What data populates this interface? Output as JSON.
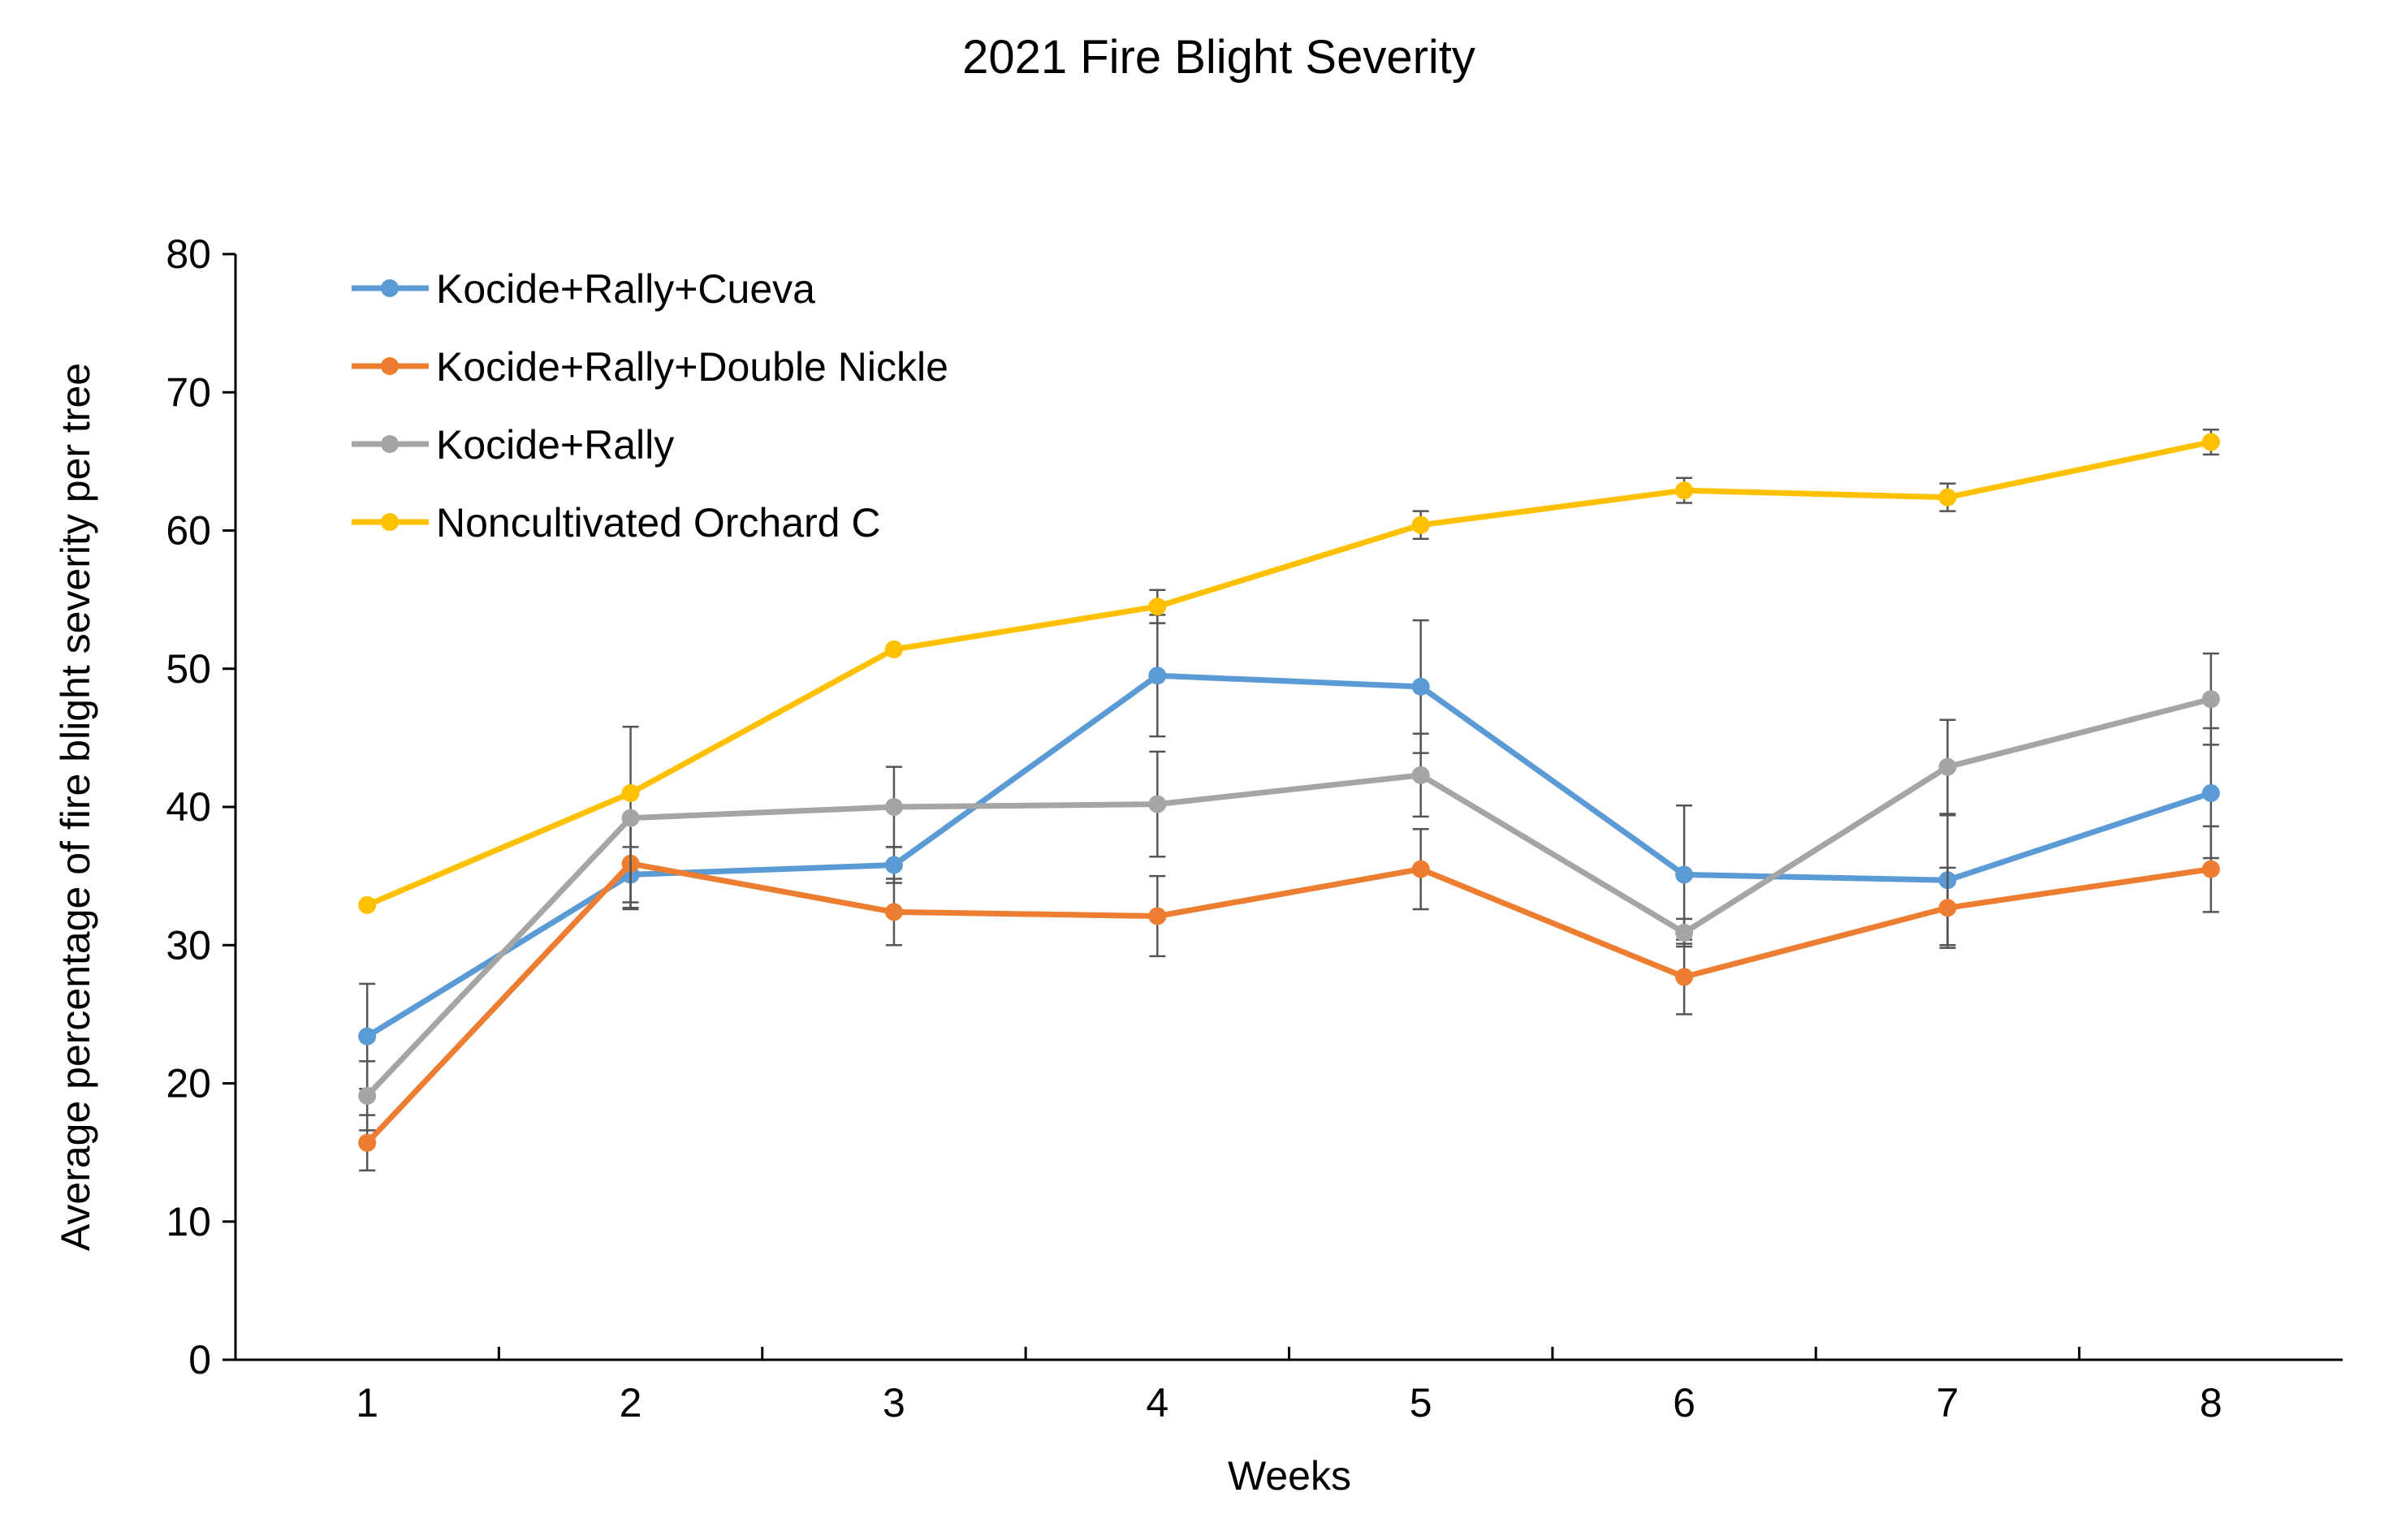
{
  "chart_data": {
    "type": "line",
    "title": "2021 Fire Blight Severity",
    "xlabel": "Weeks",
    "ylabel": "Average percentage of fire blight severity per tree",
    "ylim": [
      0,
      80
    ],
    "yticks": [
      "0",
      "10",
      "20",
      "30",
      "40",
      "50",
      "60",
      "70",
      "80"
    ],
    "categories": [
      "1",
      "2",
      "3",
      "4",
      "5",
      "6",
      "7",
      "8"
    ],
    "grid": false,
    "legend_position": "top-left",
    "error_bars": true,
    "series": [
      {
        "name": "Kocide+Rally+Cueva",
        "color": "#5B9BD5",
        "values": [
          23.4,
          35.1,
          35.8,
          49.5,
          48.7,
          35.1,
          34.7,
          41.0
        ],
        "errors": [
          3.8,
          2.0,
          1.3,
          4.4,
          4.8,
          5.0,
          4.7,
          4.7
        ]
      },
      {
        "name": "Kocide+Rally+Double Nickle",
        "color": "#ED7D31",
        "values": [
          15.7,
          35.9,
          32.4,
          32.1,
          35.5,
          27.7,
          32.7,
          35.5
        ],
        "errors": [
          2.0,
          3.2,
          2.4,
          2.9,
          2.9,
          2.7,
          2.9,
          3.1
        ]
      },
      {
        "name": "Kocide+Rally",
        "color": "#A5A5A5",
        "values": [
          19.1,
          39.2,
          40.0,
          40.2,
          42.3,
          30.9,
          42.9,
          47.8
        ],
        "errors": [
          2.5,
          6.6,
          2.9,
          3.8,
          3.0,
          1.0,
          3.4,
          3.3
        ]
      },
      {
        "name": "Noncultivated Orchard C",
        "color": "#FFC000",
        "values": [
          32.9,
          41.0,
          51.4,
          54.5,
          60.4,
          62.9,
          62.4,
          66.4
        ],
        "errors": [
          0.0,
          0.0,
          0.0,
          1.2,
          1.0,
          0.9,
          1.0,
          0.9
        ]
      }
    ]
  }
}
